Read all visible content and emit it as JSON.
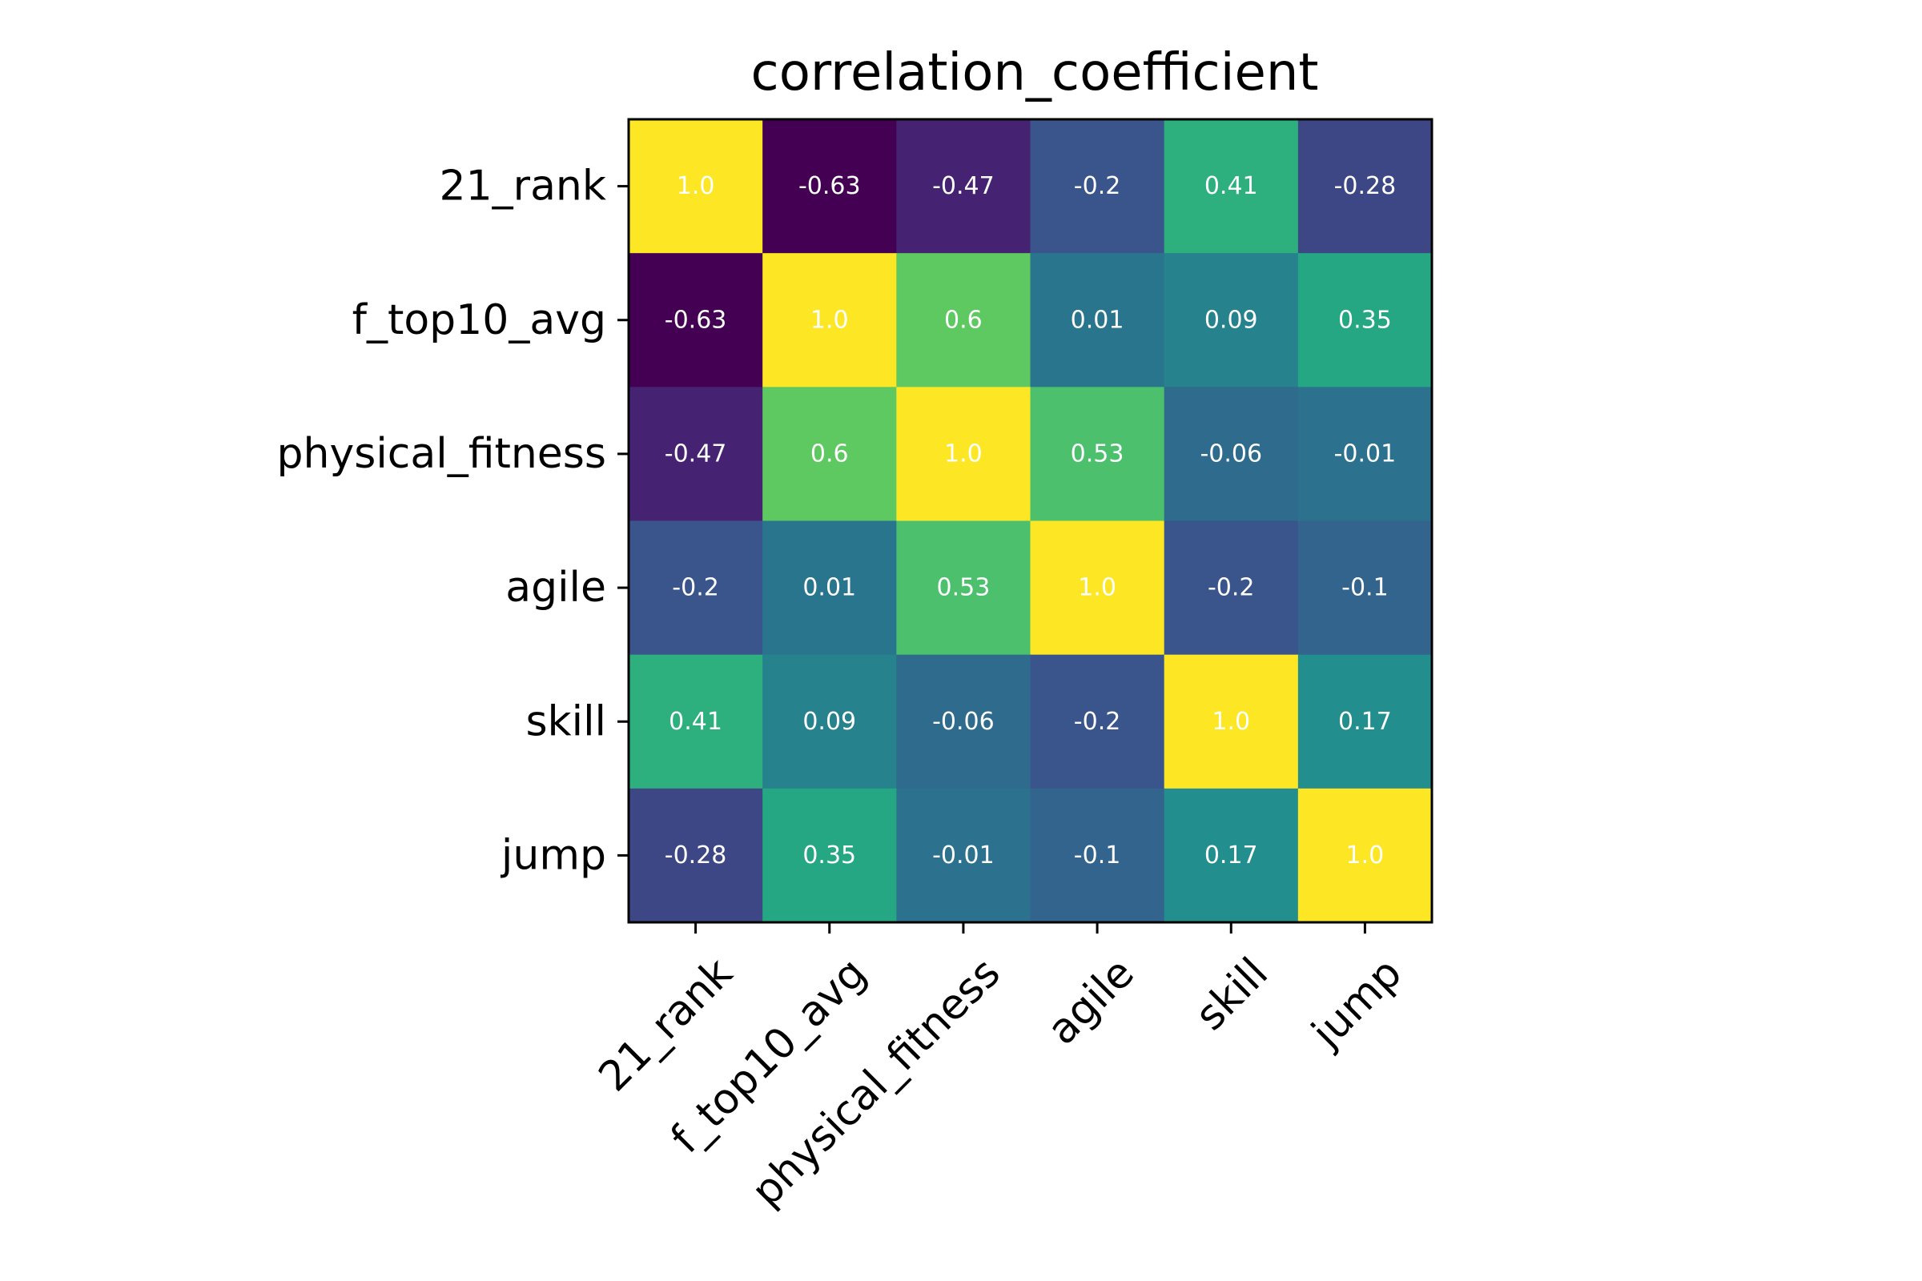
{
  "chart_data": {
    "type": "heatmap",
    "title": "correlation_coefficient",
    "xlabel": "",
    "ylabel": "",
    "x_categories": [
      "21_rank",
      "f_top10_avg",
      "physical_fitness",
      "agile",
      "skill",
      "jump"
    ],
    "y_categories": [
      "21_rank",
      "f_top10_avg",
      "physical_fitness",
      "agile",
      "skill",
      "jump"
    ],
    "values": [
      [
        1.0,
        -0.63,
        -0.47,
        -0.2,
        0.41,
        -0.28
      ],
      [
        -0.63,
        1.0,
        0.6,
        0.01,
        0.09,
        0.35
      ],
      [
        -0.47,
        0.6,
        1.0,
        0.53,
        -0.06,
        -0.01
      ],
      [
        -0.2,
        0.01,
        0.53,
        1.0,
        -0.2,
        -0.1
      ],
      [
        0.41,
        0.09,
        -0.06,
        -0.2,
        1.0,
        0.17
      ],
      [
        -0.28,
        0.35,
        -0.01,
        -0.1,
        0.17,
        1.0
      ]
    ],
    "value_labels": [
      [
        "1.0",
        "-0.63",
        "-0.47",
        "-0.2",
        "0.41",
        "-0.28"
      ],
      [
        "-0.63",
        "1.0",
        "0.6",
        "0.01",
        "0.09",
        "0.35"
      ],
      [
        "-0.47",
        "0.6",
        "1.0",
        "0.53",
        "-0.06",
        "-0.01"
      ],
      [
        "-0.2",
        "0.01",
        "0.53",
        "1.0",
        "-0.2",
        "-0.1"
      ],
      [
        "0.41",
        "0.09",
        "-0.06",
        "-0.2",
        "1.0",
        "0.17"
      ],
      [
        "-0.28",
        "0.35",
        "-0.01",
        "-0.1",
        "0.17",
        "1.0"
      ]
    ],
    "colormap": "viridis",
    "value_range": [
      -0.63,
      1.0
    ],
    "x_tick_rotation_deg": 45,
    "grid": false,
    "legend": "none",
    "colors": {
      "annotation_text": "#ffffff",
      "axis": "#000000",
      "background": "#ffffff"
    }
  }
}
